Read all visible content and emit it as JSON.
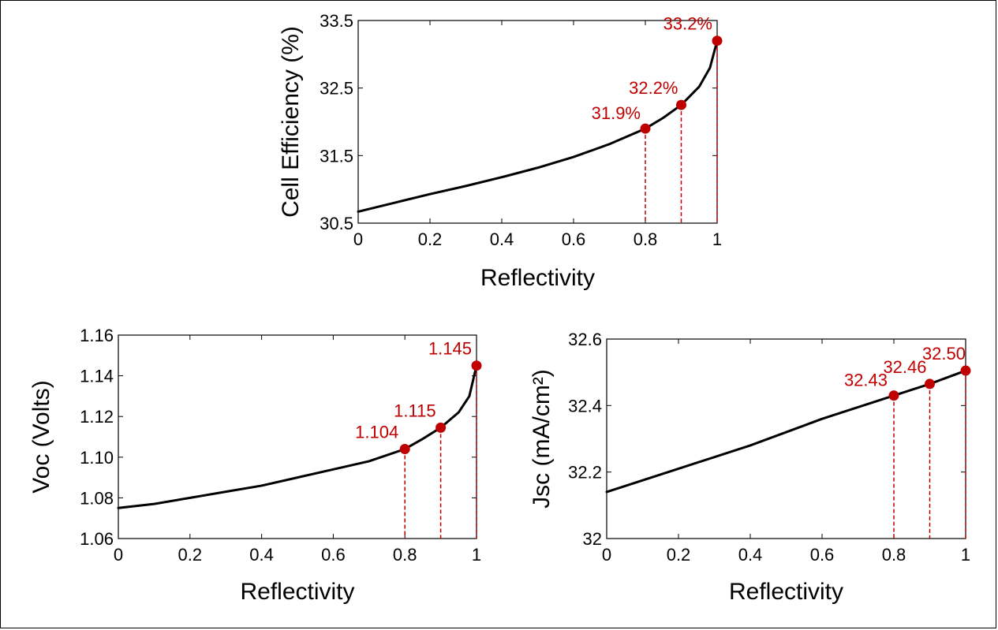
{
  "colors": {
    "curve": "#000000",
    "marker": "#c00000",
    "annotation": "#c00000",
    "dashed": "#c00000"
  },
  "chart_data": [
    {
      "id": "efficiency",
      "type": "line",
      "xlabel": "Reflectivity",
      "ylabel": "Cell Efficiency (%)",
      "xlim": [
        0,
        1
      ],
      "ylim": [
        30.5,
        33.5
      ],
      "xticks": [
        0,
        0.2,
        0.4,
        0.6,
        0.8,
        1
      ],
      "xtick_labels": [
        "0",
        "0.2",
        "0.4",
        "0.6",
        "0.8",
        "1"
      ],
      "yticks": [
        30.5,
        31.5,
        32.5,
        33.5
      ],
      "ytick_labels": [
        "30.5",
        "31.5",
        "32.5",
        "33.5"
      ],
      "grid": false,
      "curve": {
        "x": [
          0,
          0.1,
          0.2,
          0.3,
          0.4,
          0.5,
          0.6,
          0.7,
          0.8,
          0.85,
          0.9,
          0.95,
          0.98,
          1.0
        ],
        "y": [
          30.67,
          30.8,
          30.93,
          31.05,
          31.18,
          31.32,
          31.48,
          31.67,
          31.9,
          32.06,
          32.25,
          32.52,
          32.8,
          33.2
        ]
      },
      "points": [
        {
          "x": 0.8,
          "y": 31.9,
          "label": "31.9%"
        },
        {
          "x": 0.9,
          "y": 32.25,
          "label": "32.2%"
        },
        {
          "x": 1.0,
          "y": 33.2,
          "label": "33.2%"
        }
      ]
    },
    {
      "id": "voc",
      "type": "line",
      "xlabel": "Reflectivity",
      "ylabel": "Voc (Volts)",
      "xlim": [
        0,
        1
      ],
      "ylim": [
        1.06,
        1.16
      ],
      "xticks": [
        0,
        0.2,
        0.4,
        0.6,
        0.8,
        1
      ],
      "xtick_labels": [
        "0",
        "0.2",
        "0.4",
        "0.6",
        "0.8",
        "1"
      ],
      "yticks": [
        1.06,
        1.08,
        1.1,
        1.12,
        1.14,
        1.16
      ],
      "ytick_labels": [
        "1.06",
        "1.08",
        "1.10",
        "1.12",
        "1.14",
        "1.16"
      ],
      "grid": false,
      "curve": {
        "x": [
          0,
          0.1,
          0.2,
          0.3,
          0.4,
          0.5,
          0.6,
          0.7,
          0.8,
          0.85,
          0.9,
          0.95,
          0.98,
          1.0
        ],
        "y": [
          1.075,
          1.077,
          1.08,
          1.083,
          1.086,
          1.09,
          1.094,
          1.098,
          1.104,
          1.109,
          1.1145,
          1.122,
          1.13,
          1.145
        ]
      },
      "points": [
        {
          "x": 0.8,
          "y": 1.104,
          "label": "1.104"
        },
        {
          "x": 0.9,
          "y": 1.1145,
          "label": "1.115"
        },
        {
          "x": 1.0,
          "y": 1.145,
          "label": "1.145"
        }
      ]
    },
    {
      "id": "jsc",
      "type": "line",
      "xlabel": "Reflectivity",
      "ylabel": "Jsc (mA/cm²)",
      "xlim": [
        0,
        1
      ],
      "ylim": [
        32,
        32.6
      ],
      "xticks": [
        0,
        0.2,
        0.4,
        0.6,
        0.8,
        1
      ],
      "xtick_labels": [
        "0",
        "0.2",
        "0.4",
        "0.6",
        "0.8",
        "1"
      ],
      "yticks": [
        32,
        32.2,
        32.4,
        32.6
      ],
      "ytick_labels": [
        "32",
        "32.2",
        "32.4",
        "32.6"
      ],
      "grid": false,
      "curve": {
        "x": [
          0,
          0.2,
          0.4,
          0.6,
          0.8,
          0.9,
          1.0
        ],
        "y": [
          32.14,
          32.21,
          32.28,
          32.36,
          32.43,
          32.465,
          32.505
        ]
      },
      "points": [
        {
          "x": 0.8,
          "y": 32.43,
          "label": "32.43"
        },
        {
          "x": 0.9,
          "y": 32.465,
          "label": "32.46"
        },
        {
          "x": 1.0,
          "y": 32.505,
          "label": "32.50"
        }
      ]
    }
  ]
}
